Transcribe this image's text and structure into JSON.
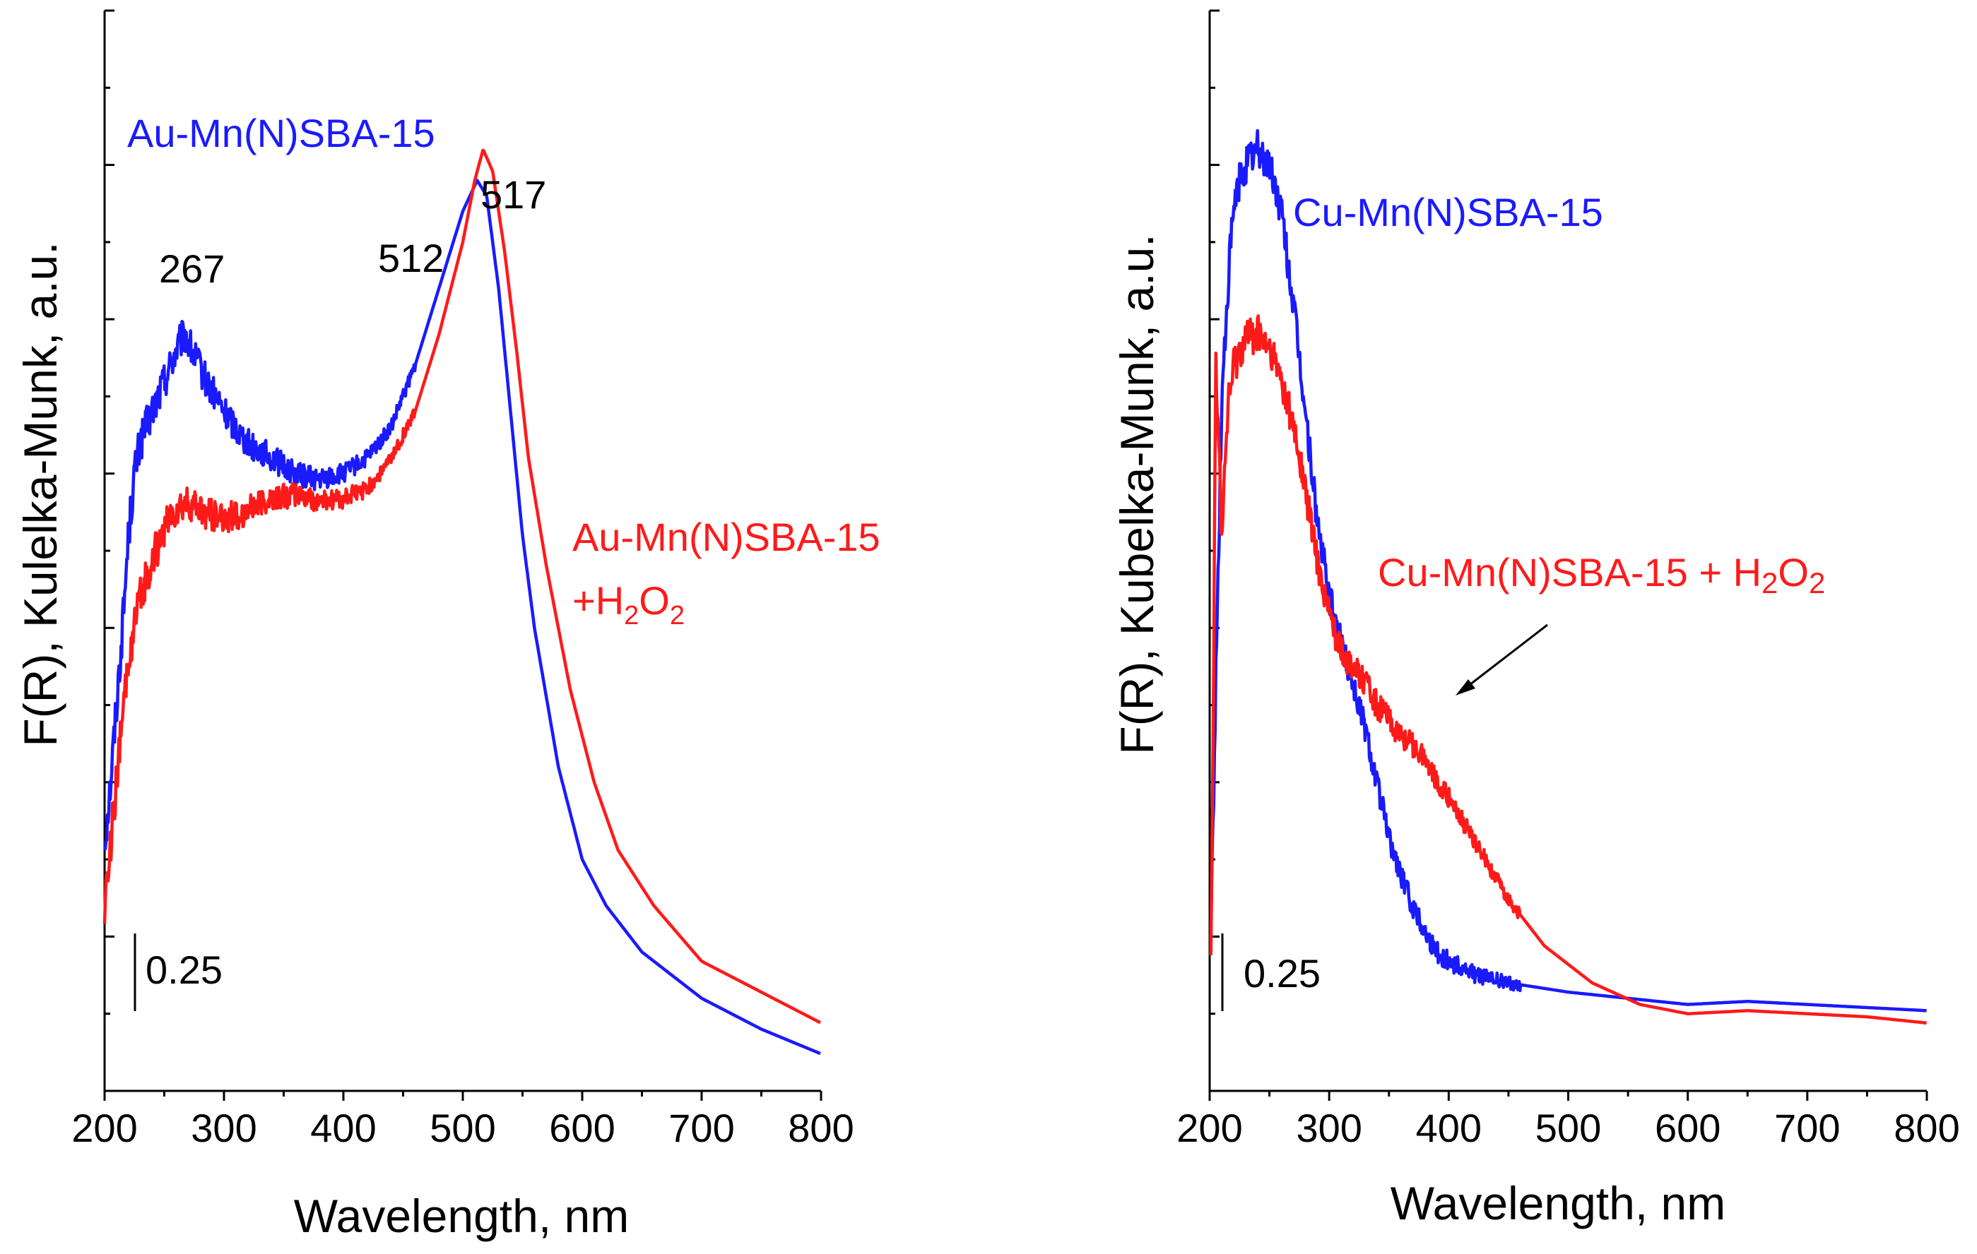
{
  "chart_data": [
    {
      "type": "line",
      "title": "",
      "xlabel": "Wavelength, nm",
      "ylabel": "F(R), Kulelka-Munk, a.u.",
      "xlim": [
        200,
        800
      ],
      "ylim": [
        0,
        3.5
      ],
      "xticks": [
        "200",
        "300",
        "400",
        "500",
        "600",
        "700",
        "800"
      ],
      "scale_bar": {
        "label": "0.25",
        "value": 0.25
      },
      "series": [
        {
          "name": "Au-Mn(N)SBA-15",
          "color": "#1a1aff",
          "x": [
            200,
            205,
            210,
            215,
            220,
            225,
            230,
            240,
            250,
            260,
            267,
            275,
            285,
            300,
            320,
            340,
            360,
            380,
            400,
            420,
            440,
            460,
            480,
            500,
            512,
            520,
            530,
            540,
            550,
            560,
            580,
            600,
            620,
            650,
            700,
            750,
            800
          ],
          "y": [
            0.8,
            1.0,
            1.25,
            1.5,
            1.8,
            2.0,
            2.1,
            2.2,
            2.3,
            2.4,
            2.45,
            2.38,
            2.3,
            2.2,
            2.1,
            2.05,
            2.0,
            1.98,
            2.0,
            2.05,
            2.15,
            2.35,
            2.6,
            2.85,
            2.95,
            2.9,
            2.6,
            2.2,
            1.8,
            1.5,
            1.05,
            0.75,
            0.6,
            0.45,
            0.3,
            0.2,
            0.12
          ]
        },
        {
          "name": "Au-Mn(N)SBA-15 +H2O2",
          "color": "#ff1a1a",
          "x": [
            200,
            205,
            210,
            215,
            220,
            225,
            230,
            240,
            250,
            260,
            270,
            280,
            300,
            320,
            340,
            360,
            380,
            400,
            420,
            440,
            460,
            480,
            500,
            510,
            517,
            525,
            535,
            545,
            555,
            570,
            590,
            610,
            630,
            660,
            700,
            750,
            800
          ],
          "y": [
            0.6,
            0.8,
            1.0,
            1.2,
            1.4,
            1.5,
            1.6,
            1.72,
            1.82,
            1.88,
            1.9,
            1.88,
            1.85,
            1.88,
            1.92,
            1.93,
            1.91,
            1.92,
            1.95,
            2.05,
            2.2,
            2.45,
            2.75,
            2.95,
            3.05,
            2.98,
            2.72,
            2.4,
            2.05,
            1.7,
            1.3,
            1.0,
            0.78,
            0.6,
            0.42,
            0.32,
            0.22
          ]
        }
      ],
      "annotations": {
        "label_blue": "Au-Mn(N)SBA-15",
        "label_red_line1": "Au-Mn(N)SBA-15",
        "label_red_plus": "+H",
        "label_red_sub1": "2",
        "label_red_o": "O",
        "label_red_sub2": "2",
        "peak_267": "267",
        "peak_512": "512",
        "peak_517": "517"
      }
    },
    {
      "type": "line",
      "title": "",
      "xlabel": "Wavelength, nm",
      "ylabel": "F(R), Kubelka-Munk, a.u.",
      "xlim": [
        200,
        800
      ],
      "ylim": [
        0,
        3.5
      ],
      "xticks": [
        "200",
        "300",
        "400",
        "500",
        "600",
        "700",
        "800"
      ],
      "scale_bar": {
        "label": "0.25",
        "value": 0.25
      },
      "series": [
        {
          "name": "Cu-Mn(N)SBA-15",
          "color": "#1a1aff",
          "x": [
            201,
            205,
            210,
            215,
            220,
            225,
            230,
            240,
            250,
            260,
            270,
            280,
            290,
            300,
            310,
            320,
            330,
            340,
            350,
            360,
            370,
            380,
            390,
            400,
            420,
            450,
            500,
            550,
            600,
            650,
            700,
            750,
            800
          ],
          "y": [
            0.5,
            1.3,
            2.2,
            2.6,
            2.85,
            2.95,
            3.0,
            3.05,
            3.0,
            2.85,
            2.55,
            2.2,
            1.85,
            1.6,
            1.45,
            1.32,
            1.18,
            1.0,
            0.82,
            0.7,
            0.6,
            0.52,
            0.45,
            0.42,
            0.38,
            0.35,
            0.32,
            0.3,
            0.28,
            0.29,
            0.28,
            0.27,
            0.26
          ]
        },
        {
          "name": "Cu-Mn(N)SBA-15 + H2O2",
          "color": "#ff1a1a",
          "x": [
            201,
            203,
            205,
            210,
            215,
            220,
            225,
            230,
            240,
            250,
            260,
            270,
            280,
            290,
            300,
            310,
            320,
            330,
            340,
            350,
            360,
            370,
            380,
            390,
            400,
            420,
            450,
            480,
            520,
            560,
            600,
            650,
            700,
            750,
            800
          ],
          "y": [
            0.5,
            1.2,
            2.4,
            1.8,
            2.2,
            2.35,
            2.4,
            2.45,
            2.45,
            2.4,
            2.3,
            2.15,
            1.95,
            1.72,
            1.55,
            1.42,
            1.38,
            1.32,
            1.25,
            1.2,
            1.15,
            1.12,
            1.08,
            1.0,
            0.95,
            0.82,
            0.62,
            0.47,
            0.35,
            0.28,
            0.25,
            0.26,
            0.25,
            0.24,
            0.22
          ]
        }
      ],
      "annotations": {
        "label_blue": "Cu-Mn(N)SBA-15",
        "label_red_main": "Cu-Mn(N)SBA-15 + H",
        "label_red_sub1": "2",
        "label_red_o": "O",
        "label_red_sub2": "2"
      }
    }
  ]
}
